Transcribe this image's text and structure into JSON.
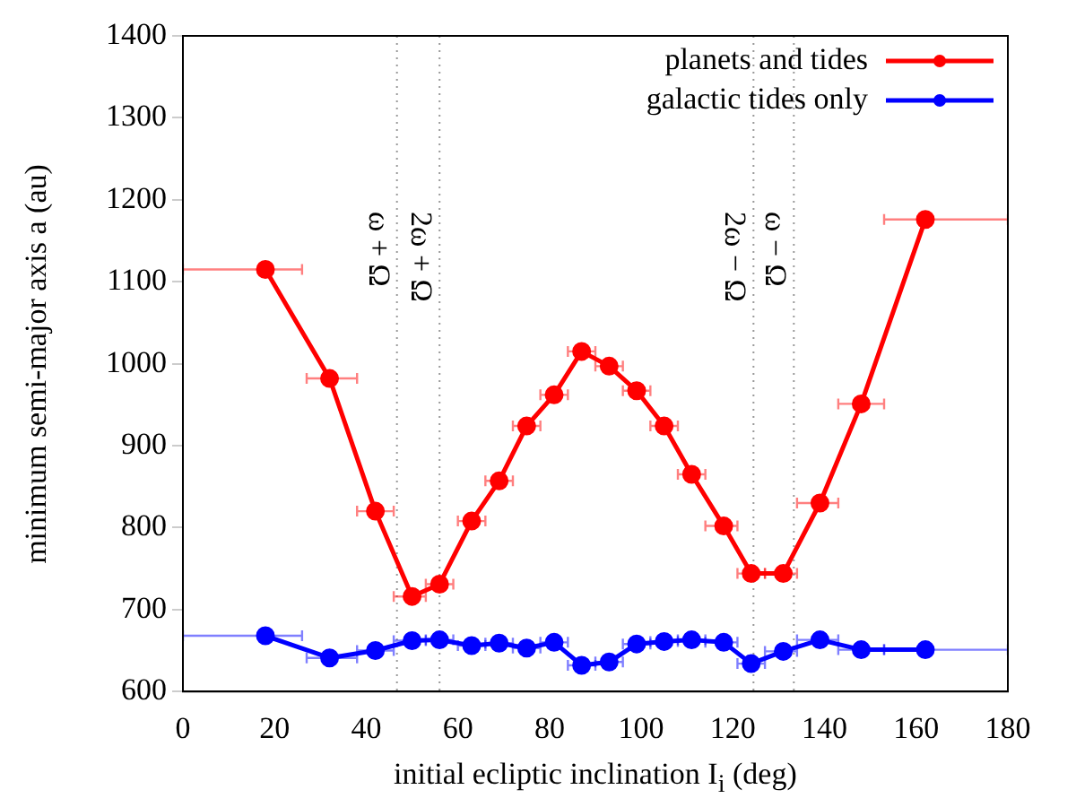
{
  "chart_data": {
    "type": "line",
    "xlabel": "initial ecliptic inclination I$_{i}$ (deg)",
    "ylabel": "minimum semi-major axis a (au)",
    "x": [
      18,
      32,
      42,
      50,
      56,
      63,
      69,
      75,
      81,
      87,
      93,
      99,
      105,
      111,
      118,
      124,
      131,
      139,
      148,
      162
    ],
    "series": [
      {
        "name": "planets and tides",
        "color": "#ff0000",
        "values": [
          1115,
          982,
          820,
          716,
          731,
          808,
          857,
          924,
          962,
          1015,
          997,
          967,
          924,
          865,
          802,
          744,
          744,
          830,
          951,
          1176
        ],
        "xerrors": [
          [
            0,
            26
          ],
          [
            27,
            38
          ],
          [
            38,
            46
          ],
          [
            46,
            53
          ],
          [
            53,
            59
          ],
          [
            60,
            66
          ],
          [
            66,
            72
          ],
          [
            72,
            78
          ],
          [
            78,
            84
          ],
          [
            84,
            90
          ],
          [
            90,
            96
          ],
          [
            96,
            102
          ],
          [
            102,
            108
          ],
          [
            108,
            114
          ],
          [
            114,
            121
          ],
          [
            121,
            127
          ],
          [
            127,
            134
          ],
          [
            134,
            143
          ],
          [
            143,
            153
          ],
          [
            153,
            180
          ]
        ]
      },
      {
        "name": "galactic tides only",
        "color": "#0000ff",
        "values": [
          668,
          641,
          650,
          662,
          663,
          656,
          659,
          653,
          660,
          632,
          636,
          658,
          661,
          663,
          660,
          634,
          649,
          663,
          651,
          651
        ],
        "xerrors": [
          [
            0,
            26
          ],
          [
            27,
            38
          ],
          [
            38,
            46
          ],
          [
            46,
            53
          ],
          [
            53,
            59
          ],
          [
            60,
            66
          ],
          [
            66,
            72
          ],
          [
            72,
            78
          ],
          [
            78,
            84
          ],
          [
            84,
            90
          ],
          [
            90,
            96
          ],
          [
            96,
            102
          ],
          [
            102,
            108
          ],
          [
            108,
            114
          ],
          [
            114,
            121
          ],
          [
            121,
            127
          ],
          [
            127,
            134
          ],
          [
            134,
            143
          ],
          [
            143,
            153
          ],
          [
            153,
            180
          ]
        ]
      }
    ],
    "xlim": [
      0,
      180
    ],
    "xticks": [
      0,
      20,
      40,
      60,
      80,
      100,
      120,
      140,
      160,
      180
    ],
    "ylim": [
      600,
      1400
    ],
    "yticks": [
      600,
      700,
      800,
      900,
      1000,
      1100,
      1200,
      1300,
      1400
    ],
    "ref_lines": [
      {
        "axis": "x",
        "value": 46.7,
        "label": "ω + Ω",
        "color": "#999999",
        "line_style": "dotted"
      },
      {
        "axis": "x",
        "value": 56,
        "label": "2ω + Ω",
        "color": "#999999",
        "line_style": "dotted"
      },
      {
        "axis": "x",
        "value": 124.5,
        "label": "2ω − Ω",
        "color": "#999999",
        "line_style": "dotted"
      },
      {
        "axis": "x",
        "value": 133.3,
        "label": "ω − Ω",
        "color": "#999999",
        "line_style": "dotted"
      }
    ],
    "grid": false,
    "legend": "top right",
    "marker": "circle",
    "line_style": "solid"
  }
}
